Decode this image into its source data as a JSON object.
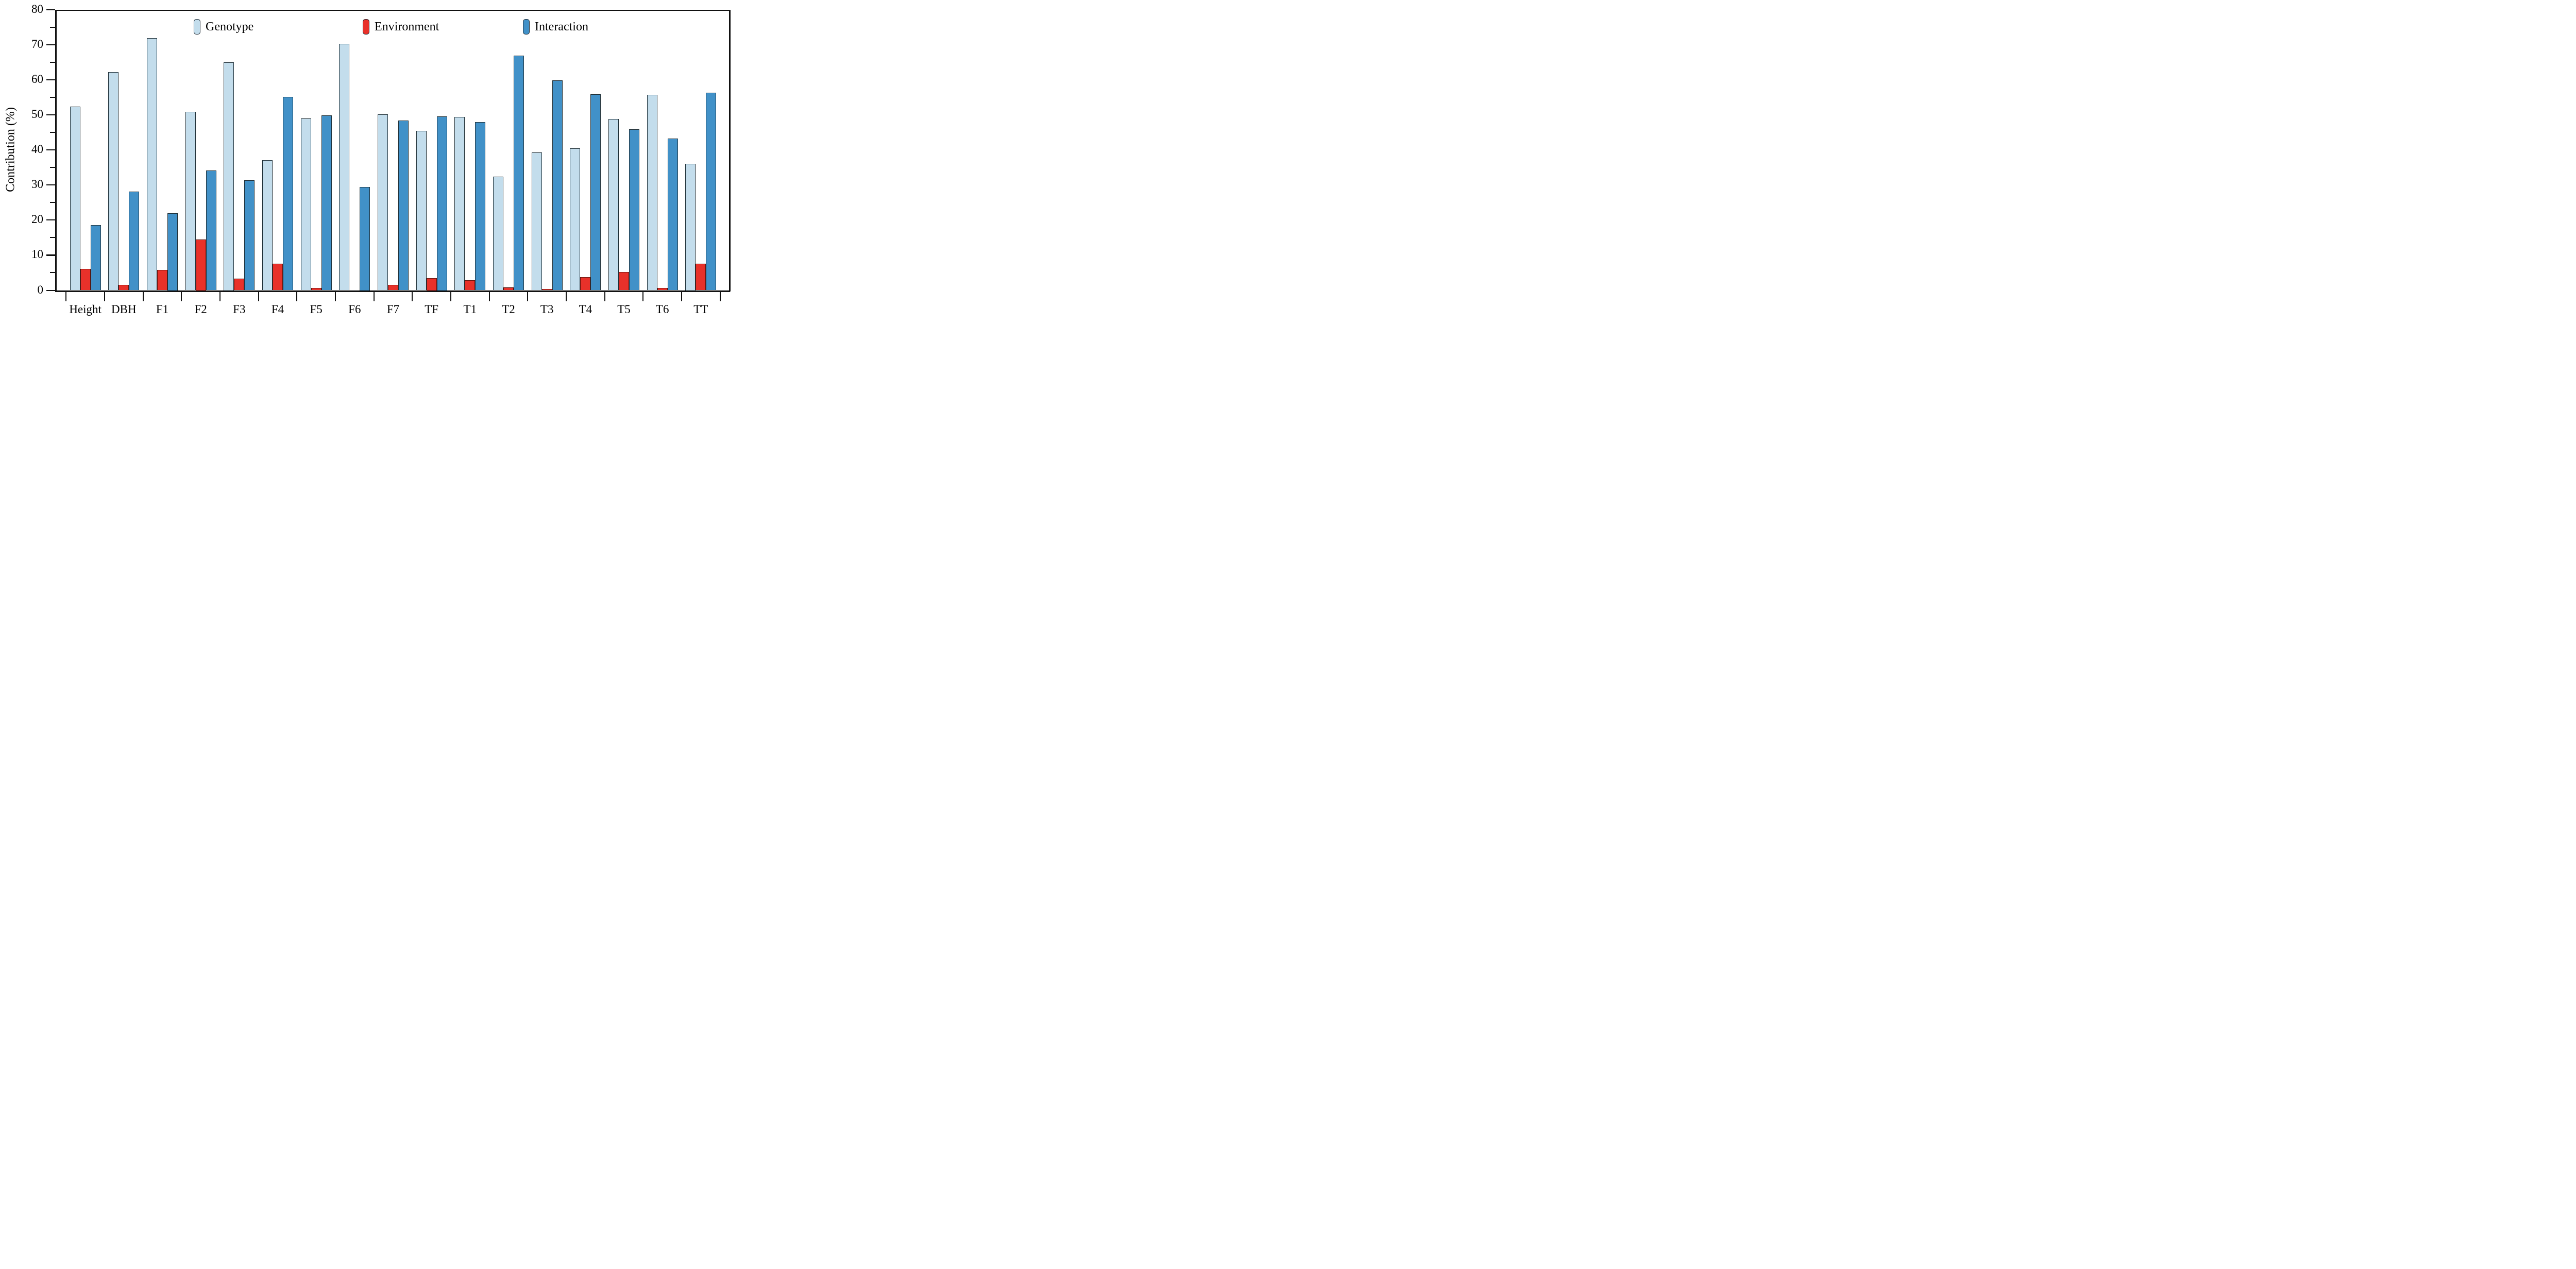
{
  "chart_data": {
    "type": "bar",
    "title": "",
    "xlabel": "",
    "ylabel": "Contribution (%)",
    "ylim": [
      0,
      80
    ],
    "ytick_major": [
      0,
      10,
      20,
      30,
      40,
      50,
      60,
      70,
      80
    ],
    "ytick_minor": [
      5,
      15,
      25,
      35,
      45,
      55,
      65,
      75
    ],
    "grid": false,
    "legend_position": "top-inside",
    "categories": [
      "Height",
      "DBH",
      "F1",
      "F2",
      "F3",
      "F4",
      "F5",
      "F6",
      "F7",
      "TF",
      "T1",
      "T2",
      "T3",
      "T4",
      "T5",
      "T6",
      "TT"
    ],
    "series": [
      {
        "name": "Genotype",
        "color": "#c3ddec",
        "border_color": "#1f3038",
        "values": [
          52.3,
          62.1,
          71.9,
          50.8,
          65.0,
          37.1,
          48.9,
          70.2,
          50.1,
          45.4,
          49.4,
          32.4,
          39.3,
          40.4,
          48.8,
          55.7,
          36.0
        ]
      },
      {
        "name": "Environment",
        "color": "#e8312a",
        "border_color": "#5c150e",
        "values": [
          6.1,
          1.6,
          5.8,
          14.5,
          3.3,
          7.6,
          0.7,
          0,
          1.6,
          3.5,
          2.8,
          0.8,
          0.4,
          3.8,
          5.2,
          0.7,
          7.6
        ]
      },
      {
        "name": "Interaction",
        "color": "#4191c8",
        "border_color": "#1f3038",
        "values": [
          18.6,
          28.1,
          22.0,
          34.1,
          31.3,
          55.1,
          49.9,
          29.5,
          48.4,
          49.5,
          47.9,
          66.8,
          59.8,
          55.8,
          45.9,
          43.2,
          56.3
        ]
      }
    ]
  },
  "colors": {
    "axis": "#111111",
    "background": "#ffffff",
    "text": "#000000"
  }
}
